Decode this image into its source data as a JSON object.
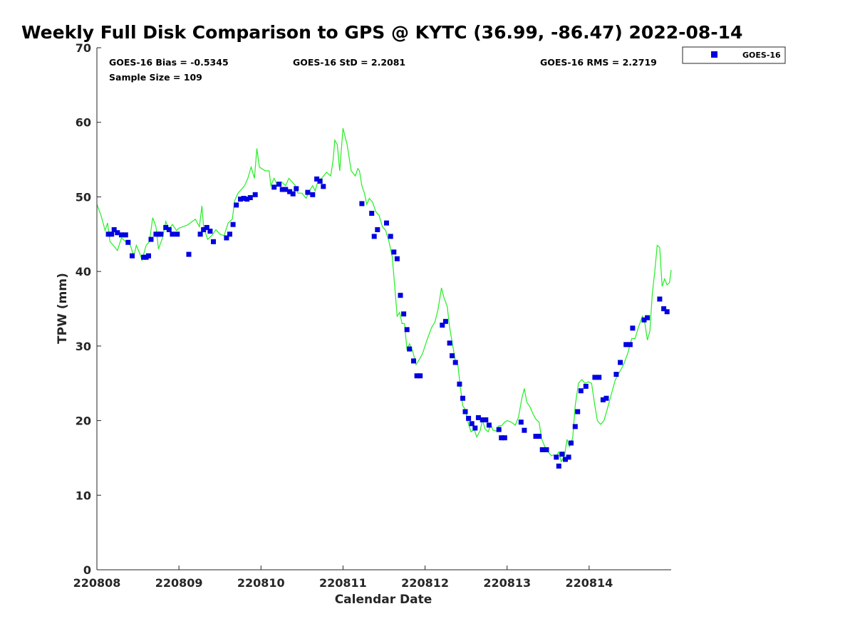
{
  "chart_data": {
    "type": "scatter",
    "title": "Weekly Full Disk Comparison to GPS @ KYTC (36.99, -86.47) 2022-08-14",
    "xlabel": "Calendar Date",
    "ylabel": "TPW (mm)",
    "xlim": [
      0,
      7
    ],
    "ylim": [
      0,
      70
    ],
    "x_ticks": [
      {
        "value": 0,
        "label": "220808"
      },
      {
        "value": 1,
        "label": "220809"
      },
      {
        "value": 2,
        "label": "220810"
      },
      {
        "value": 3,
        "label": "220811"
      },
      {
        "value": 4,
        "label": "220812"
      },
      {
        "value": 5,
        "label": "220813"
      },
      {
        "value": 6,
        "label": "220814"
      }
    ],
    "y_ticks": [
      0,
      10,
      20,
      30,
      40,
      50,
      60,
      70
    ],
    "legend": {
      "position": "top-right outside",
      "entries": [
        "GOES-16"
      ]
    },
    "stats": {
      "bias": "GOES-16 Bias = -0.5345",
      "std": "GOES-16 StD = 2.2081",
      "rms": "GOES-16 RMS = 2.2719",
      "sample": "Sample Size = 109"
    },
    "colors": {
      "goes": "#0000e0",
      "gps": "#22ee22",
      "axis": "#262626"
    },
    "series": [
      {
        "name": "GOES-16",
        "kind": "markers",
        "points": [
          [
            0.14,
            45.0
          ],
          [
            0.18,
            45.0
          ],
          [
            0.21,
            45.6
          ],
          [
            0.25,
            45.2
          ],
          [
            0.3,
            44.9
          ],
          [
            0.35,
            44.9
          ],
          [
            0.38,
            43.9
          ],
          [
            0.43,
            42.1
          ],
          [
            0.57,
            41.9
          ],
          [
            0.6,
            41.9
          ],
          [
            0.63,
            42.1
          ],
          [
            0.66,
            44.3
          ],
          [
            0.72,
            45.0
          ],
          [
            0.75,
            45.0
          ],
          [
            0.78,
            45.0
          ],
          [
            0.84,
            45.9
          ],
          [
            0.88,
            45.6
          ],
          [
            0.92,
            45.0
          ],
          [
            0.98,
            45.0
          ],
          [
            1.12,
            42.3
          ],
          [
            1.26,
            45.0
          ],
          [
            1.3,
            45.6
          ],
          [
            1.34,
            45.9
          ],
          [
            1.38,
            45.4
          ],
          [
            1.42,
            44.0
          ],
          [
            1.58,
            44.5
          ],
          [
            1.62,
            45.0
          ],
          [
            1.66,
            46.3
          ],
          [
            1.7,
            48.9
          ],
          [
            1.75,
            49.7
          ],
          [
            1.79,
            49.8
          ],
          [
            1.83,
            49.7
          ],
          [
            1.87,
            49.9
          ],
          [
            1.93,
            50.3
          ],
          [
            2.16,
            51.3
          ],
          [
            2.22,
            51.7
          ],
          [
            2.26,
            51.0
          ],
          [
            2.3,
            51.0
          ],
          [
            2.35,
            50.7
          ],
          [
            2.39,
            50.4
          ],
          [
            2.43,
            51.1
          ],
          [
            2.57,
            50.6
          ],
          [
            2.63,
            50.3
          ],
          [
            2.68,
            52.4
          ],
          [
            2.72,
            52.1
          ],
          [
            2.76,
            51.4
          ],
          [
            3.23,
            49.1
          ],
          [
            3.35,
            47.8
          ],
          [
            3.38,
            44.7
          ],
          [
            3.42,
            45.6
          ],
          [
            3.53,
            46.5
          ],
          [
            3.58,
            44.7
          ],
          [
            3.62,
            42.6
          ],
          [
            3.66,
            41.7
          ],
          [
            3.7,
            36.8
          ],
          [
            3.74,
            34.3
          ],
          [
            3.78,
            32.2
          ],
          [
            3.81,
            29.6
          ],
          [
            3.86,
            28.0
          ],
          [
            3.9,
            26.0
          ],
          [
            3.94,
            26.0
          ],
          [
            4.21,
            32.8
          ],
          [
            4.25,
            33.3
          ],
          [
            4.3,
            30.4
          ],
          [
            4.33,
            28.7
          ],
          [
            4.37,
            27.8
          ],
          [
            4.42,
            24.9
          ],
          [
            4.46,
            23.0
          ],
          [
            4.49,
            21.2
          ],
          [
            4.53,
            20.3
          ],
          [
            4.57,
            19.6
          ],
          [
            4.61,
            19.0
          ],
          [
            4.65,
            20.4
          ],
          [
            4.7,
            20.1
          ],
          [
            4.74,
            20.1
          ],
          [
            4.78,
            19.4
          ],
          [
            4.9,
            18.8
          ],
          [
            4.93,
            17.7
          ],
          [
            4.97,
            17.7
          ],
          [
            5.17,
            19.8
          ],
          [
            5.21,
            18.7
          ],
          [
            5.35,
            17.9
          ],
          [
            5.39,
            17.9
          ],
          [
            5.43,
            16.1
          ],
          [
            5.48,
            16.1
          ],
          [
            5.6,
            15.1
          ],
          [
            5.63,
            13.9
          ],
          [
            5.67,
            15.5
          ],
          [
            5.71,
            14.8
          ],
          [
            5.75,
            15.1
          ],
          [
            5.78,
            17.0
          ],
          [
            5.83,
            19.2
          ],
          [
            5.86,
            21.2
          ],
          [
            5.9,
            24.0
          ],
          [
            5.96,
            24.6
          ],
          [
            6.07,
            25.8
          ],
          [
            6.12,
            25.8
          ],
          [
            6.17,
            22.8
          ],
          [
            6.21,
            23.0
          ],
          [
            6.33,
            26.2
          ],
          [
            6.38,
            27.8
          ],
          [
            6.45,
            30.2
          ],
          [
            6.5,
            30.2
          ],
          [
            6.53,
            32.4
          ],
          [
            6.67,
            33.5
          ],
          [
            6.71,
            33.8
          ],
          [
            6.86,
            36.3
          ],
          [
            6.91,
            35.0
          ],
          [
            6.95,
            34.6
          ]
        ]
      },
      {
        "kind": "line",
        "points": [
          [
            0.0,
            49.0
          ],
          [
            0.05,
            47.5
          ],
          [
            0.1,
            45.5
          ],
          [
            0.13,
            46.5
          ],
          [
            0.16,
            44.0
          ],
          [
            0.2,
            43.5
          ],
          [
            0.25,
            42.8
          ],
          [
            0.3,
            44.5
          ],
          [
            0.35,
            44.0
          ],
          [
            0.4,
            43.8
          ],
          [
            0.45,
            42.0
          ],
          [
            0.48,
            43.5
          ],
          [
            0.52,
            42.5
          ],
          [
            0.55,
            41.5
          ],
          [
            0.6,
            43.5
          ],
          [
            0.64,
            44.0
          ],
          [
            0.68,
            47.2
          ],
          [
            0.72,
            46.0
          ],
          [
            0.75,
            43.0
          ],
          [
            0.8,
            44.5
          ],
          [
            0.84,
            46.7
          ],
          [
            0.88,
            45.7
          ],
          [
            0.92,
            46.3
          ],
          [
            0.97,
            45.5
          ],
          [
            1.0,
            45.8
          ],
          [
            1.1,
            46.2
          ],
          [
            1.2,
            47.0
          ],
          [
            1.25,
            46.0
          ],
          [
            1.28,
            48.8
          ],
          [
            1.3,
            46.0
          ],
          [
            1.35,
            44.3
          ],
          [
            1.4,
            44.8
          ],
          [
            1.45,
            45.6
          ],
          [
            1.5,
            45.0
          ],
          [
            1.55,
            44.8
          ],
          [
            1.6,
            46.5
          ],
          [
            1.65,
            47.0
          ],
          [
            1.68,
            49.5
          ],
          [
            1.72,
            50.5
          ],
          [
            1.76,
            51.0
          ],
          [
            1.8,
            51.5
          ],
          [
            1.84,
            52.5
          ],
          [
            1.88,
            54.0
          ],
          [
            1.92,
            52.5
          ],
          [
            1.95,
            56.5
          ],
          [
            1.98,
            54.0
          ],
          [
            2.05,
            53.5
          ],
          [
            2.1,
            53.5
          ],
          [
            2.12,
            51.5
          ],
          [
            2.16,
            52.5
          ],
          [
            2.2,
            51.5
          ],
          [
            2.25,
            52.0
          ],
          [
            2.3,
            51.5
          ],
          [
            2.34,
            52.5
          ],
          [
            2.38,
            52.0
          ],
          [
            2.42,
            51.5
          ],
          [
            2.45,
            50.5
          ],
          [
            2.5,
            50.5
          ],
          [
            2.55,
            49.8
          ],
          [
            2.6,
            51.0
          ],
          [
            2.63,
            51.5
          ],
          [
            2.66,
            50.8
          ],
          [
            2.7,
            52.3
          ],
          [
            2.74,
            52.5
          ],
          [
            2.8,
            53.3
          ],
          [
            2.85,
            52.8
          ],
          [
            2.88,
            55.0
          ],
          [
            2.9,
            57.6
          ],
          [
            2.93,
            57.0
          ],
          [
            2.96,
            53.5
          ],
          [
            3.0,
            59.2
          ],
          [
            3.05,
            57.0
          ],
          [
            3.1,
            53.5
          ],
          [
            3.15,
            52.8
          ],
          [
            3.18,
            53.8
          ],
          [
            3.2,
            53.5
          ],
          [
            3.23,
            51.5
          ],
          [
            3.26,
            50.5
          ],
          [
            3.29,
            49.0
          ],
          [
            3.32,
            49.8
          ],
          [
            3.36,
            49.3
          ],
          [
            3.4,
            48.0
          ],
          [
            3.44,
            47.5
          ],
          [
            3.48,
            46.0
          ],
          [
            3.52,
            45.5
          ],
          [
            3.56,
            44.0
          ],
          [
            3.6,
            42.0
          ],
          [
            3.63,
            38.0
          ],
          [
            3.66,
            34.0
          ],
          [
            3.69,
            34.5
          ],
          [
            3.72,
            33.0
          ],
          [
            3.75,
            33.0
          ],
          [
            3.78,
            29.5
          ],
          [
            3.81,
            30.3
          ],
          [
            3.85,
            29.3
          ],
          [
            3.89,
            27.5
          ],
          [
            3.93,
            28.2
          ],
          [
            3.97,
            29.0
          ],
          [
            4.02,
            30.7
          ],
          [
            4.08,
            32.5
          ],
          [
            4.12,
            33.2
          ],
          [
            4.16,
            35.0
          ],
          [
            4.2,
            37.8
          ],
          [
            4.23,
            36.5
          ],
          [
            4.27,
            35.3
          ],
          [
            4.3,
            32.5
          ],
          [
            4.33,
            30.5
          ],
          [
            4.37,
            28.0
          ],
          [
            4.4,
            27.5
          ],
          [
            4.43,
            24.5
          ],
          [
            4.46,
            22.0
          ],
          [
            4.49,
            21.5
          ],
          [
            4.53,
            19.5
          ],
          [
            4.56,
            18.5
          ],
          [
            4.6,
            18.8
          ],
          [
            4.63,
            17.8
          ],
          [
            4.67,
            18.6
          ],
          [
            4.7,
            20.1
          ],
          [
            4.73,
            18.9
          ],
          [
            4.77,
            18.5
          ],
          [
            4.8,
            19.5
          ],
          [
            4.83,
            18.7
          ],
          [
            4.87,
            18.6
          ],
          [
            4.9,
            19.3
          ],
          [
            4.93,
            19.3
          ],
          [
            4.97,
            19.8
          ],
          [
            5.0,
            20.0
          ],
          [
            5.05,
            19.8
          ],
          [
            5.1,
            19.4
          ],
          [
            5.14,
            20.5
          ],
          [
            5.18,
            23.0
          ],
          [
            5.21,
            24.3
          ],
          [
            5.24,
            22.5
          ],
          [
            5.28,
            21.8
          ],
          [
            5.32,
            20.8
          ],
          [
            5.35,
            20.2
          ],
          [
            5.39,
            19.8
          ],
          [
            5.42,
            17.6
          ],
          [
            5.46,
            16.5
          ],
          [
            5.5,
            15.8
          ],
          [
            5.54,
            15.3
          ],
          [
            5.57,
            15.4
          ],
          [
            5.6,
            15.3
          ],
          [
            5.63,
            15.8
          ],
          [
            5.66,
            14.5
          ],
          [
            5.7,
            15.3
          ],
          [
            5.73,
            17.5
          ],
          [
            5.76,
            16.5
          ],
          [
            5.8,
            17.7
          ],
          [
            5.83,
            22.0
          ],
          [
            5.87,
            25.0
          ],
          [
            5.91,
            25.5
          ],
          [
            5.95,
            25.0
          ],
          [
            5.99,
            25.2
          ],
          [
            6.03,
            25.0
          ],
          [
            6.07,
            22.0
          ],
          [
            6.1,
            20.0
          ],
          [
            6.14,
            19.5
          ],
          [
            6.18,
            20.0
          ],
          [
            6.22,
            21.5
          ],
          [
            6.27,
            23.5
          ],
          [
            6.32,
            25.5
          ],
          [
            6.37,
            26.5
          ],
          [
            6.42,
            27.5
          ],
          [
            6.47,
            29.0
          ],
          [
            6.52,
            31.0
          ],
          [
            6.56,
            31.0
          ],
          [
            6.6,
            32.5
          ],
          [
            6.65,
            34.0
          ],
          [
            6.68,
            33.0
          ],
          [
            6.71,
            30.8
          ],
          [
            6.74,
            32.0
          ],
          [
            6.77,
            37.0
          ],
          [
            6.8,
            40.0
          ],
          [
            6.83,
            43.5
          ],
          [
            6.86,
            43.2
          ],
          [
            6.89,
            38.0
          ],
          [
            6.92,
            39.0
          ],
          [
            6.95,
            38.2
          ],
          [
            6.98,
            38.5
          ],
          [
            7.0,
            40.2
          ]
        ]
      }
    ]
  }
}
